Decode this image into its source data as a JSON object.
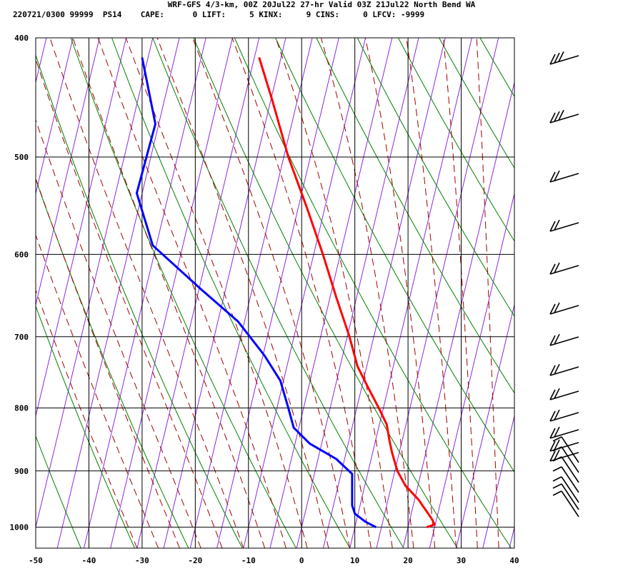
{
  "header": {
    "line1": "WRF-GFS 4/3-km, 00Z 20Jul22 27-hr Valid 03Z 21Jul22 North Bend WA",
    "line2": "220721/0300 99999  PS14    CAPE:      0 LIFT:     5 KINX:     9 CINS:     0 LFCV: -9999"
  },
  "chart_data": {
    "type": "line",
    "title": "WRF-GFS 4/3-km, 00Z 20Jul22 27-hr Valid 03Z 21Jul22 North Bend WA",
    "xlabel": "",
    "ylabel": "",
    "x_ticks": [
      "-50",
      "-40",
      "-30",
      "-20",
      "-10",
      "0",
      "10",
      "20",
      "30",
      "40"
    ],
    "y_ticks": [
      "400",
      "500",
      "600",
      "700",
      "800",
      "900",
      "1000"
    ],
    "xlim": [
      -50,
      40
    ],
    "pressure_range_hPa": [
      400,
      1040
    ],
    "y_scale": "log-pressure",
    "grid": true,
    "background_lines": {
      "isotherms": "purple solid, skewed",
      "dry_adiabats": "green solid",
      "moist_adiabats": "dark red dashed"
    },
    "colors": {
      "temperature": "#ff0000",
      "dewpoint": "#0000ff",
      "isotherm": "#8a2be2",
      "dry_adiabat": "#008000",
      "moist_adiabat": "#a00000"
    },
    "series": [
      {
        "name": "",
        "role": "temperature",
        "points": [
          {
            "p": 1000,
            "x": 23.5
          },
          {
            "p": 995,
            "x": 25
          },
          {
            "p": 985,
            "x": 24.5
          },
          {
            "p": 950,
            "x": 22
          },
          {
            "p": 925,
            "x": 19.5
          },
          {
            "p": 900,
            "x": 18
          },
          {
            "p": 870,
            "x": 17
          },
          {
            "p": 850,
            "x": 16.5
          },
          {
            "p": 825,
            "x": 16
          },
          {
            "p": 800,
            "x": 14.5
          },
          {
            "p": 770,
            "x": 12.5
          },
          {
            "p": 740,
            "x": 10.5
          },
          {
            "p": 700,
            "x": 9
          },
          {
            "p": 650,
            "x": 6.5
          },
          {
            "p": 600,
            "x": 4
          },
          {
            "p": 550,
            "x": 1
          },
          {
            "p": 500,
            "x": -2.5
          },
          {
            "p": 450,
            "x": -5.5
          },
          {
            "p": 415,
            "x": -8
          }
        ]
      },
      {
        "name": "",
        "role": "dewpoint",
        "points": [
          {
            "p": 1000,
            "x": 14
          },
          {
            "p": 990,
            "x": 12
          },
          {
            "p": 975,
            "x": 10
          },
          {
            "p": 960,
            "x": 9.5
          },
          {
            "p": 930,
            "x": 9.5
          },
          {
            "p": 905,
            "x": 9.5
          },
          {
            "p": 880,
            "x": 6.5
          },
          {
            "p": 855,
            "x": 1.5
          },
          {
            "p": 830,
            "x": -1.5
          },
          {
            "p": 800,
            "x": -2.5
          },
          {
            "p": 760,
            "x": -4
          },
          {
            "p": 725,
            "x": -7
          },
          {
            "p": 680,
            "x": -12
          },
          {
            "p": 640,
            "x": -19
          },
          {
            "p": 590,
            "x": -28
          },
          {
            "p": 535,
            "x": -31
          },
          {
            "p": 470,
            "x": -27.5
          },
          {
            "p": 415,
            "x": -30
          }
        ]
      }
    ],
    "wind_barbs_count": 20
  }
}
